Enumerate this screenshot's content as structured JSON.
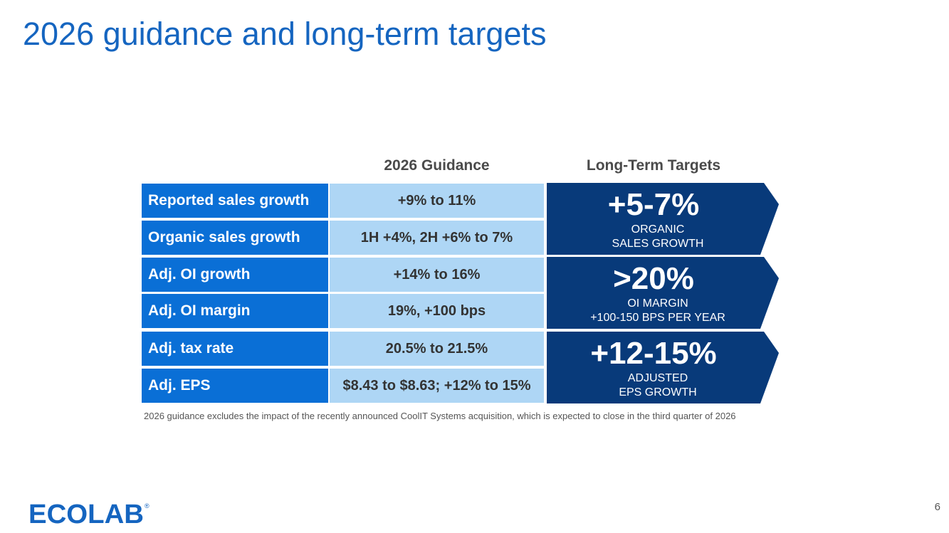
{
  "slide": {
    "title": "2026 guidance and long-term targets",
    "page_number": "6"
  },
  "columns": {
    "guidance": "2026 Guidance",
    "targets": "Long-Term Targets"
  },
  "rows": [
    {
      "metric": "Reported sales growth",
      "guidance": "+9% to 11%"
    },
    {
      "metric": "Organic sales growth",
      "guidance": "1H +4%, 2H +6% to 7%"
    },
    {
      "metric": "Adj. OI growth",
      "guidance": "+14% to 16%"
    },
    {
      "metric": "Adj. OI margin",
      "guidance": "19%, +100 bps"
    },
    {
      "metric": "Adj. tax rate",
      "guidance": "20.5% to 21.5%"
    },
    {
      "metric": "Adj. EPS",
      "guidance": "$8.43 to $8.63; +12% to 15%"
    }
  ],
  "targets": [
    {
      "value": "+5-7%",
      "line1": "ORGANIC",
      "line2": "SALES GROWTH"
    },
    {
      "value": ">20%",
      "line1": "OI MARGIN",
      "line2": "+100-150 BPS PER YEAR"
    },
    {
      "value": "+12-15%",
      "line1": "ADJUSTED",
      "line2": "EPS GROWTH"
    }
  ],
  "footnote": "2026 guidance excludes the impact of the recently announced CoolIT Systems acquisition, which is expected to close in the third quarter of 2026",
  "logo": {
    "text": "ECOLAB",
    "registered": "®"
  },
  "colors": {
    "title_blue": "#1565c0",
    "label_blue": "#0a6fd6",
    "value_light_blue": "#aed6f5",
    "target_navy": "#083a7a"
  }
}
